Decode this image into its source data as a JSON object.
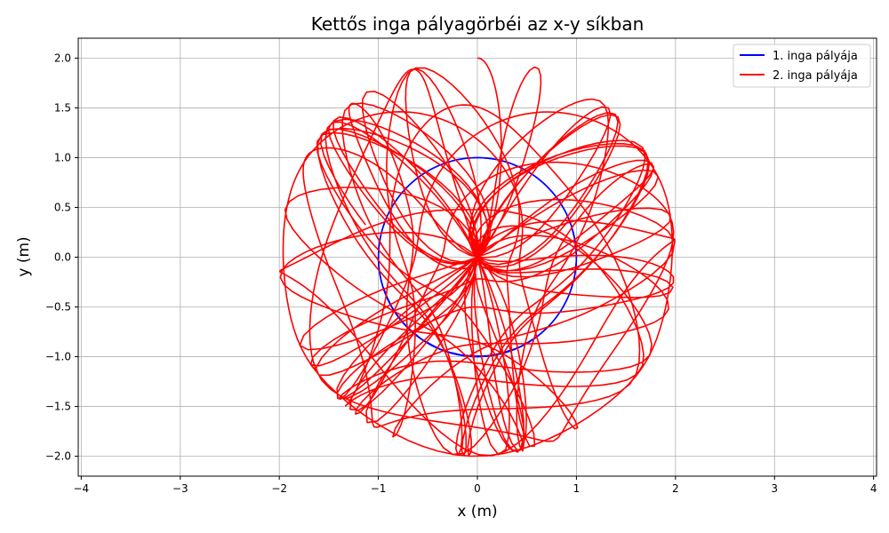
{
  "chart_data": {
    "type": "line",
    "title": "Kettős inga pályagörbéi az x-y síkban",
    "xlabel": "x (m)",
    "ylabel": "y (m)",
    "xlim": [
      -4.03,
      4.03
    ],
    "ylim": [
      -2.2,
      2.2
    ],
    "xticks": [
      -4,
      -3,
      -2,
      -1,
      0,
      1,
      2,
      3,
      4
    ],
    "yticks": [
      -2.0,
      -1.5,
      -1.0,
      -0.5,
      0.0,
      0.5,
      1.0,
      1.5,
      2.0
    ],
    "grid": true,
    "legend_position": "top-right",
    "series": [
      {
        "name": "1. inga pályája",
        "color": "#0000ff",
        "description_shape": "circle",
        "center": [
          0,
          0
        ],
        "radius": 1.0
      },
      {
        "name": "2. inga pályája",
        "color": "#ff0000",
        "description_shape": "chaotic-curve",
        "arm1_length": 1.0,
        "arm2_length": 1.0,
        "start_point": [
          0.0,
          2.0
        ],
        "bounding_radius": 2.0
      }
    ]
  }
}
